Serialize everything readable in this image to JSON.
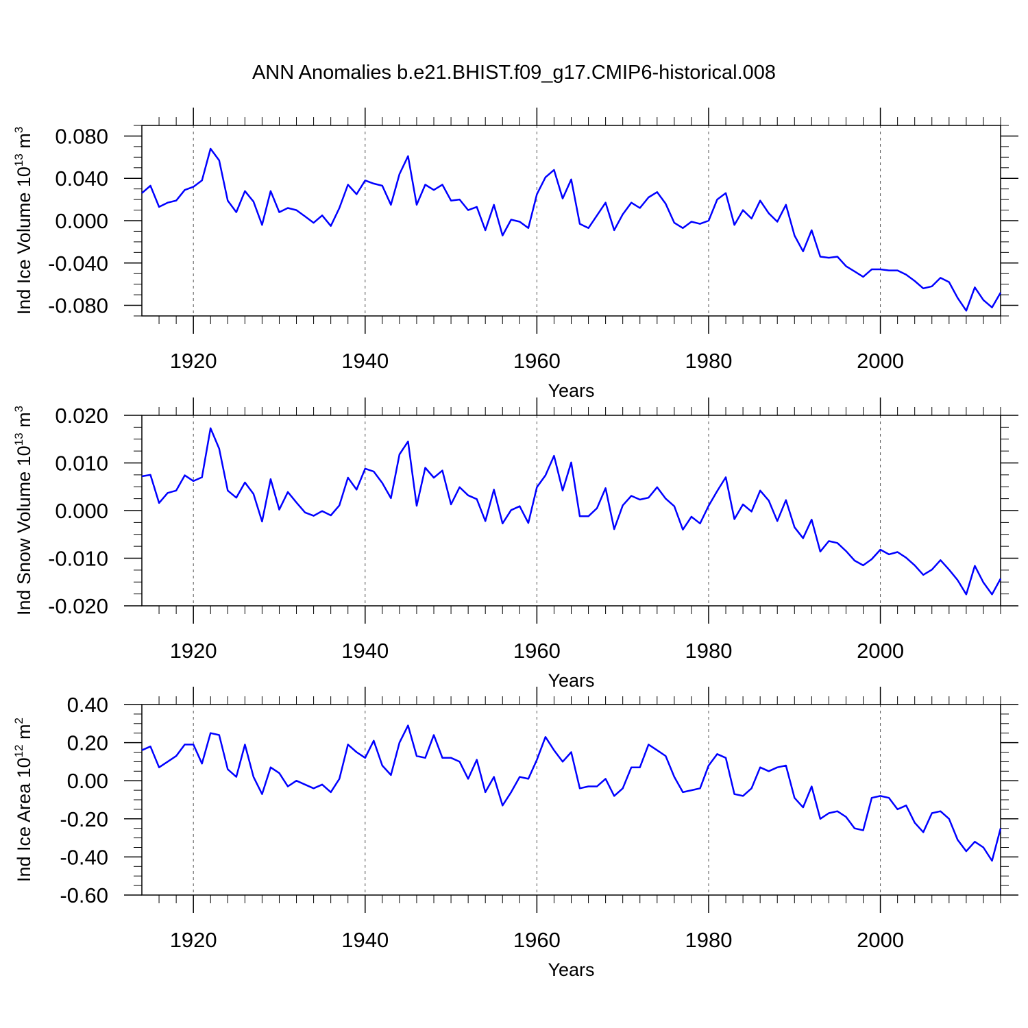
{
  "page": {
    "title": "ANN Anomalies b.e21.BHIST.f09_g17.CMIP6-historical.008"
  },
  "chart_data": [
    {
      "type": "line",
      "title": "ANN Anomalies b.e21.BHIST.f09_g17.CMIP6-historical.008",
      "xlabel": "Years",
      "ylabel_parts": [
        "Ind Ice Volume 10",
        "13",
        " m",
        "3"
      ],
      "xlim": [
        1914,
        2014
      ],
      "ylim": [
        -0.09,
        0.09
      ],
      "x_ticks": [
        1920,
        1940,
        1960,
        1980,
        2000
      ],
      "x_tick_labels": [
        "1920",
        "1940",
        "1960",
        "1980",
        "2000"
      ],
      "y_ticks": [
        0.08,
        0.04,
        0.0,
        -0.04,
        -0.08
      ],
      "y_tick_labels": [
        "0.080",
        "0.040",
        "0.000",
        "-0.040",
        "-0.080"
      ],
      "grid": "vertical dashed at major x ticks",
      "color": "#0000ff",
      "x_start": 1914,
      "values": [
        0.026,
        0.033,
        0.013,
        0.017,
        0.019,
        0.029,
        0.032,
        0.038,
        0.068,
        0.057,
        0.019,
        0.008,
        0.028,
        0.018,
        -0.004,
        0.028,
        0.008,
        0.012,
        0.01,
        0.004,
        -0.002,
        0.005,
        -0.005,
        0.012,
        0.034,
        0.025,
        0.038,
        0.035,
        0.033,
        0.015,
        0.044,
        0.061,
        0.015,
        0.034,
        0.029,
        0.034,
        0.019,
        0.02,
        0.01,
        0.013,
        -0.009,
        0.015,
        -0.014,
        0.001,
        -0.001,
        -0.007,
        0.025,
        0.041,
        0.048,
        0.021,
        0.039,
        -0.003,
        -0.007,
        0.005,
        0.017,
        -0.009,
        0.006,
        0.017,
        0.012,
        0.022,
        0.027,
        0.016,
        -0.002,
        -0.007,
        -0.001,
        -0.003,
        0.0,
        0.02,
        0.026,
        -0.004,
        0.01,
        0.002,
        0.019,
        0.007,
        -0.001,
        0.015,
        -0.014,
        -0.029,
        -0.009,
        -0.034,
        -0.035,
        -0.034,
        -0.043,
        -0.048,
        -0.053,
        -0.046,
        -0.046,
        -0.047,
        -0.047,
        -0.051,
        -0.057,
        -0.064,
        -0.062,
        -0.054,
        -0.058,
        -0.073,
        -0.085,
        -0.063,
        -0.075,
        -0.082,
        -0.068
      ]
    },
    {
      "type": "line",
      "xlabel": "Years",
      "ylabel_parts": [
        "Ind Snow Volume 10",
        "13",
        " m",
        "3"
      ],
      "xlim": [
        1914,
        2014
      ],
      "ylim": [
        -0.02,
        0.02
      ],
      "x_ticks": [
        1920,
        1940,
        1960,
        1980,
        2000
      ],
      "x_tick_labels": [
        "1920",
        "1940",
        "1960",
        "1980",
        "2000"
      ],
      "y_ticks": [
        0.02,
        0.01,
        0.0,
        -0.01,
        -0.02
      ],
      "y_tick_labels": [
        "0.020",
        "0.010",
        "0.000",
        "-0.010",
        "-0.020"
      ],
      "grid": "vertical dashed at major x ticks",
      "color": "#0000ff",
      "x_start": 1914,
      "values": [
        0.0072,
        0.0075,
        0.0016,
        0.0037,
        0.0042,
        0.0074,
        0.0062,
        0.007,
        0.0173,
        0.013,
        0.0042,
        0.0027,
        0.0059,
        0.0035,
        -0.0023,
        0.0066,
        0.0002,
        0.0039,
        0.0017,
        -0.0004,
        -0.0011,
        -0.0001,
        -0.001,
        0.0011,
        0.0069,
        0.0044,
        0.0088,
        0.0082,
        0.0058,
        0.0026,
        0.0118,
        0.0145,
        0.001,
        0.009,
        0.0069,
        0.0084,
        0.0013,
        0.0049,
        0.0032,
        0.0024,
        -0.0022,
        0.0044,
        -0.0027,
        0.0001,
        0.0009,
        -0.0026,
        0.0049,
        0.0074,
        0.0115,
        0.0042,
        0.0101,
        -0.0012,
        -0.0012,
        0.0005,
        0.0047,
        -0.0039,
        0.0011,
        0.0031,
        0.0023,
        0.0027,
        0.0049,
        0.0025,
        0.0009,
        -0.004,
        -0.0013,
        -0.0027,
        0.001,
        0.0041,
        0.007,
        -0.0018,
        0.0013,
        -0.0002,
        0.0042,
        0.0021,
        -0.0022,
        0.0022,
        -0.0035,
        -0.0058,
        -0.0019,
        -0.0086,
        -0.0064,
        -0.0068,
        -0.0085,
        -0.0105,
        -0.0115,
        -0.0102,
        -0.0082,
        -0.0092,
        -0.0087,
        -0.0099,
        -0.0115,
        -0.0135,
        -0.0124,
        -0.0104,
        -0.0124,
        -0.0146,
        -0.0176,
        -0.0116,
        -0.0151,
        -0.0176,
        -0.0143
      ]
    },
    {
      "type": "line",
      "xlabel": "Years",
      "ylabel_parts": [
        "Ind Ice Area 10",
        "12",
        " m",
        "2"
      ],
      "xlim": [
        1914,
        2014
      ],
      "ylim": [
        -0.6,
        0.4
      ],
      "x_ticks": [
        1920,
        1940,
        1960,
        1980,
        2000
      ],
      "x_tick_labels": [
        "1920",
        "1940",
        "1960",
        "1980",
        "2000"
      ],
      "y_ticks": [
        0.4,
        0.2,
        0.0,
        -0.2,
        -0.4,
        -0.6
      ],
      "y_tick_labels": [
        "0.40",
        "0.20",
        "0.00",
        "-0.20",
        "-0.40",
        "-0.60"
      ],
      "grid": "vertical dashed at major x ticks",
      "color": "#0000ff",
      "x_start": 1914,
      "values": [
        0.16,
        0.18,
        0.07,
        0.1,
        0.13,
        0.19,
        0.19,
        0.09,
        0.25,
        0.24,
        0.06,
        0.02,
        0.19,
        0.02,
        -0.07,
        0.07,
        0.04,
        -0.03,
        0.0,
        -0.02,
        -0.04,
        -0.02,
        -0.06,
        0.01,
        0.19,
        0.15,
        0.12,
        0.21,
        0.08,
        0.03,
        0.2,
        0.29,
        0.13,
        0.12,
        0.24,
        0.12,
        0.12,
        0.1,
        0.01,
        0.11,
        -0.06,
        0.02,
        -0.13,
        -0.06,
        0.02,
        0.01,
        0.11,
        0.23,
        0.16,
        0.1,
        0.15,
        -0.04,
        -0.03,
        -0.03,
        0.01,
        -0.08,
        -0.04,
        0.07,
        0.07,
        0.19,
        0.16,
        0.13,
        0.02,
        -0.06,
        -0.05,
        -0.04,
        0.08,
        0.14,
        0.12,
        -0.07,
        -0.08,
        -0.04,
        0.07,
        0.05,
        0.07,
        0.08,
        -0.09,
        -0.14,
        -0.03,
        -0.2,
        -0.17,
        -0.16,
        -0.19,
        -0.25,
        -0.26,
        -0.09,
        -0.08,
        -0.09,
        -0.15,
        -0.13,
        -0.22,
        -0.27,
        -0.17,
        -0.16,
        -0.2,
        -0.31,
        -0.37,
        -0.32,
        -0.35,
        -0.42,
        -0.25
      ]
    }
  ]
}
